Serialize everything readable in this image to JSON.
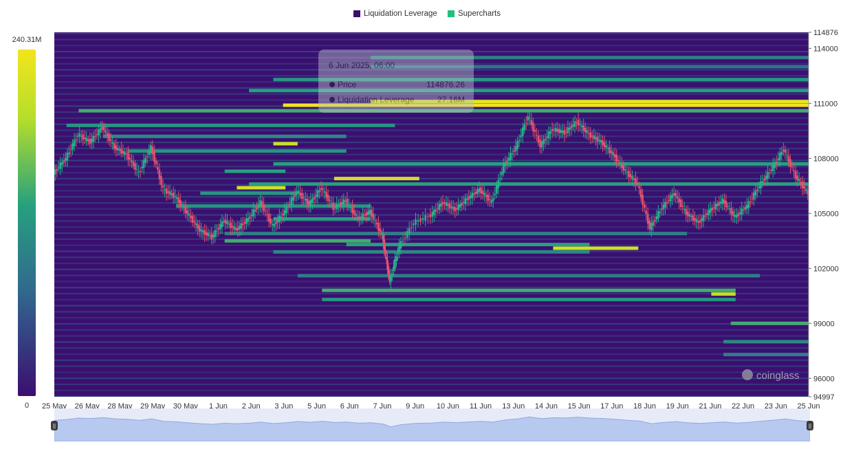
{
  "legend": {
    "items": [
      {
        "label": "Liquidation Leverage",
        "color": "#3b0f70"
      },
      {
        "label": "Supercharts",
        "color": "#22c17a"
      }
    ]
  },
  "tooltip": {
    "title": "6 Jun 2025, 06:00",
    "rows": [
      {
        "label": "Price",
        "value": "114876.26"
      },
      {
        "label": "Liquidation Leverage",
        "value": "27.16M"
      }
    ]
  },
  "watermark": "coinglass",
  "chart_data": {
    "type": "heatmap",
    "colorbar": {
      "max_label": "240.31M",
      "min_label": "0",
      "max": 240.31,
      "min": 0,
      "unit": "M",
      "colors": [
        "#3b0f70",
        "#31688e",
        "#26a07f",
        "#b5de2b",
        "#f2e51d"
      ]
    },
    "x_ticks": [
      "25 May",
      "26 May",
      "28 May",
      "29 May",
      "30 May",
      "1 Jun",
      "2 Jun",
      "3 Jun",
      "5 Jun",
      "6 Jun",
      "7 Jun",
      "9 Jun",
      "10 Jun",
      "11 Jun",
      "13 Jun",
      "14 Jun",
      "15 Jun",
      "17 Jun",
      "18 Jun",
      "19 Jun",
      "21 Jun",
      "22 Jun",
      "23 Jun",
      "25 Jun"
    ],
    "y_range": [
      94997,
      114876
    ],
    "y_ticks": [
      94997,
      96000,
      99000,
      102000,
      105000,
      108000,
      111000,
      114000,
      114876
    ],
    "x_range_days": [
      0,
      31
    ],
    "bands": [
      {
        "price": 110900,
        "start": 9.4,
        "end": 31,
        "level": 1.0
      },
      {
        "price": 111100,
        "start": 13,
        "end": 31,
        "level": 0.95
      },
      {
        "price": 110600,
        "start": 1,
        "end": 31,
        "level": 0.55
      },
      {
        "price": 111700,
        "start": 8,
        "end": 31,
        "level": 0.5
      },
      {
        "price": 112300,
        "start": 9,
        "end": 31,
        "level": 0.45
      },
      {
        "price": 109800,
        "start": 0.5,
        "end": 14,
        "level": 0.45
      },
      {
        "price": 109200,
        "start": 2,
        "end": 12,
        "level": 0.4
      },
      {
        "price": 108400,
        "start": 3,
        "end": 12,
        "level": 0.45
      },
      {
        "price": 108800,
        "start": 9,
        "end": 10,
        "level": 0.85
      },
      {
        "price": 107700,
        "start": 9,
        "end": 31,
        "level": 0.5
      },
      {
        "price": 107300,
        "start": 7,
        "end": 9.5,
        "level": 0.5
      },
      {
        "price": 106900,
        "start": 11.5,
        "end": 15,
        "level": 0.85
      },
      {
        "price": 106600,
        "start": 8,
        "end": 31,
        "level": 0.5
      },
      {
        "price": 106400,
        "start": 7.5,
        "end": 9.5,
        "level": 0.85
      },
      {
        "price": 106100,
        "start": 6,
        "end": 10,
        "level": 0.45
      },
      {
        "price": 105400,
        "start": 5,
        "end": 13,
        "level": 0.45
      },
      {
        "price": 104700,
        "start": 9,
        "end": 13,
        "level": 0.5
      },
      {
        "price": 103900,
        "start": 7,
        "end": 26,
        "level": 0.35
      },
      {
        "price": 103500,
        "start": 7,
        "end": 13,
        "level": 0.55
      },
      {
        "price": 103300,
        "start": 12,
        "end": 22,
        "level": 0.5
      },
      {
        "price": 103100,
        "start": 20.5,
        "end": 24,
        "level": 0.85
      },
      {
        "price": 102900,
        "start": 9,
        "end": 22,
        "level": 0.4
      },
      {
        "price": 101600,
        "start": 10,
        "end": 29,
        "level": 0.35
      },
      {
        "price": 100800,
        "start": 11,
        "end": 28,
        "level": 0.55
      },
      {
        "price": 100600,
        "start": 27,
        "end": 28,
        "level": 0.8
      },
      {
        "price": 100300,
        "start": 11,
        "end": 28,
        "level": 0.45
      },
      {
        "price": 99000,
        "start": 27.8,
        "end": 31,
        "level": 0.55
      },
      {
        "price": 98000,
        "start": 27.5,
        "end": 31,
        "level": 0.4
      },
      {
        "price": 97300,
        "start": 27.5,
        "end": 31,
        "level": 0.35
      },
      {
        "price": 113500,
        "start": 13,
        "end": 31,
        "level": 0.35
      },
      {
        "price": 113000,
        "start": 13,
        "end": 31,
        "level": 0.3
      }
    ],
    "price_series": [
      {
        "day": 0,
        "price": 107200
      },
      {
        "day": 0.5,
        "price": 108000
      },
      {
        "day": 1,
        "price": 109300
      },
      {
        "day": 1.5,
        "price": 108900
      },
      {
        "day": 2,
        "price": 109700
      },
      {
        "day": 2.5,
        "price": 108600
      },
      {
        "day": 3,
        "price": 108200
      },
      {
        "day": 3.5,
        "price": 107200
      },
      {
        "day": 4,
        "price": 108600
      },
      {
        "day": 4.5,
        "price": 106300
      },
      {
        "day": 5,
        "price": 105900
      },
      {
        "day": 5.5,
        "price": 105000
      },
      {
        "day": 6,
        "price": 104100
      },
      {
        "day": 6.5,
        "price": 103700
      },
      {
        "day": 7,
        "price": 104600
      },
      {
        "day": 7.5,
        "price": 104100
      },
      {
        "day": 8,
        "price": 104700
      },
      {
        "day": 8.5,
        "price": 105600
      },
      {
        "day": 9,
        "price": 104300
      },
      {
        "day": 9.5,
        "price": 105100
      },
      {
        "day": 10,
        "price": 106200
      },
      {
        "day": 10.5,
        "price": 105500
      },
      {
        "day": 11,
        "price": 106400
      },
      {
        "day": 11.5,
        "price": 105300
      },
      {
        "day": 12,
        "price": 105700
      },
      {
        "day": 12.5,
        "price": 104700
      },
      {
        "day": 13,
        "price": 105100
      },
      {
        "day": 13.5,
        "price": 103800
      },
      {
        "day": 13.8,
        "price": 101300
      },
      {
        "day": 14.2,
        "price": 103200
      },
      {
        "day": 14.8,
        "price": 104500
      },
      {
        "day": 15.5,
        "price": 104900
      },
      {
        "day": 16,
        "price": 105600
      },
      {
        "day": 16.5,
        "price": 105200
      },
      {
        "day": 17,
        "price": 105800
      },
      {
        "day": 17.5,
        "price": 106300
      },
      {
        "day": 18,
        "price": 105600
      },
      {
        "day": 18.5,
        "price": 107600
      },
      {
        "day": 19,
        "price": 108600
      },
      {
        "day": 19.5,
        "price": 110300
      },
      {
        "day": 20,
        "price": 108700
      },
      {
        "day": 20.5,
        "price": 109600
      },
      {
        "day": 21,
        "price": 109400
      },
      {
        "day": 21.5,
        "price": 110000
      },
      {
        "day": 22,
        "price": 109300
      },
      {
        "day": 22.5,
        "price": 108900
      },
      {
        "day": 23,
        "price": 108200
      },
      {
        "day": 23.5,
        "price": 107300
      },
      {
        "day": 24,
        "price": 106600
      },
      {
        "day": 24.5,
        "price": 104200
      },
      {
        "day": 25,
        "price": 105300
      },
      {
        "day": 25.5,
        "price": 106100
      },
      {
        "day": 26,
        "price": 105000
      },
      {
        "day": 26.5,
        "price": 104500
      },
      {
        "day": 27,
        "price": 105200
      },
      {
        "day": 27.5,
        "price": 105700
      },
      {
        "day": 28,
        "price": 104800
      },
      {
        "day": 28.5,
        "price": 105400
      },
      {
        "day": 29,
        "price": 106500
      },
      {
        "day": 29.5,
        "price": 107400
      },
      {
        "day": 30,
        "price": 108500
      },
      {
        "day": 30.5,
        "price": 107000
      },
      {
        "day": 31,
        "price": 106100
      }
    ]
  }
}
